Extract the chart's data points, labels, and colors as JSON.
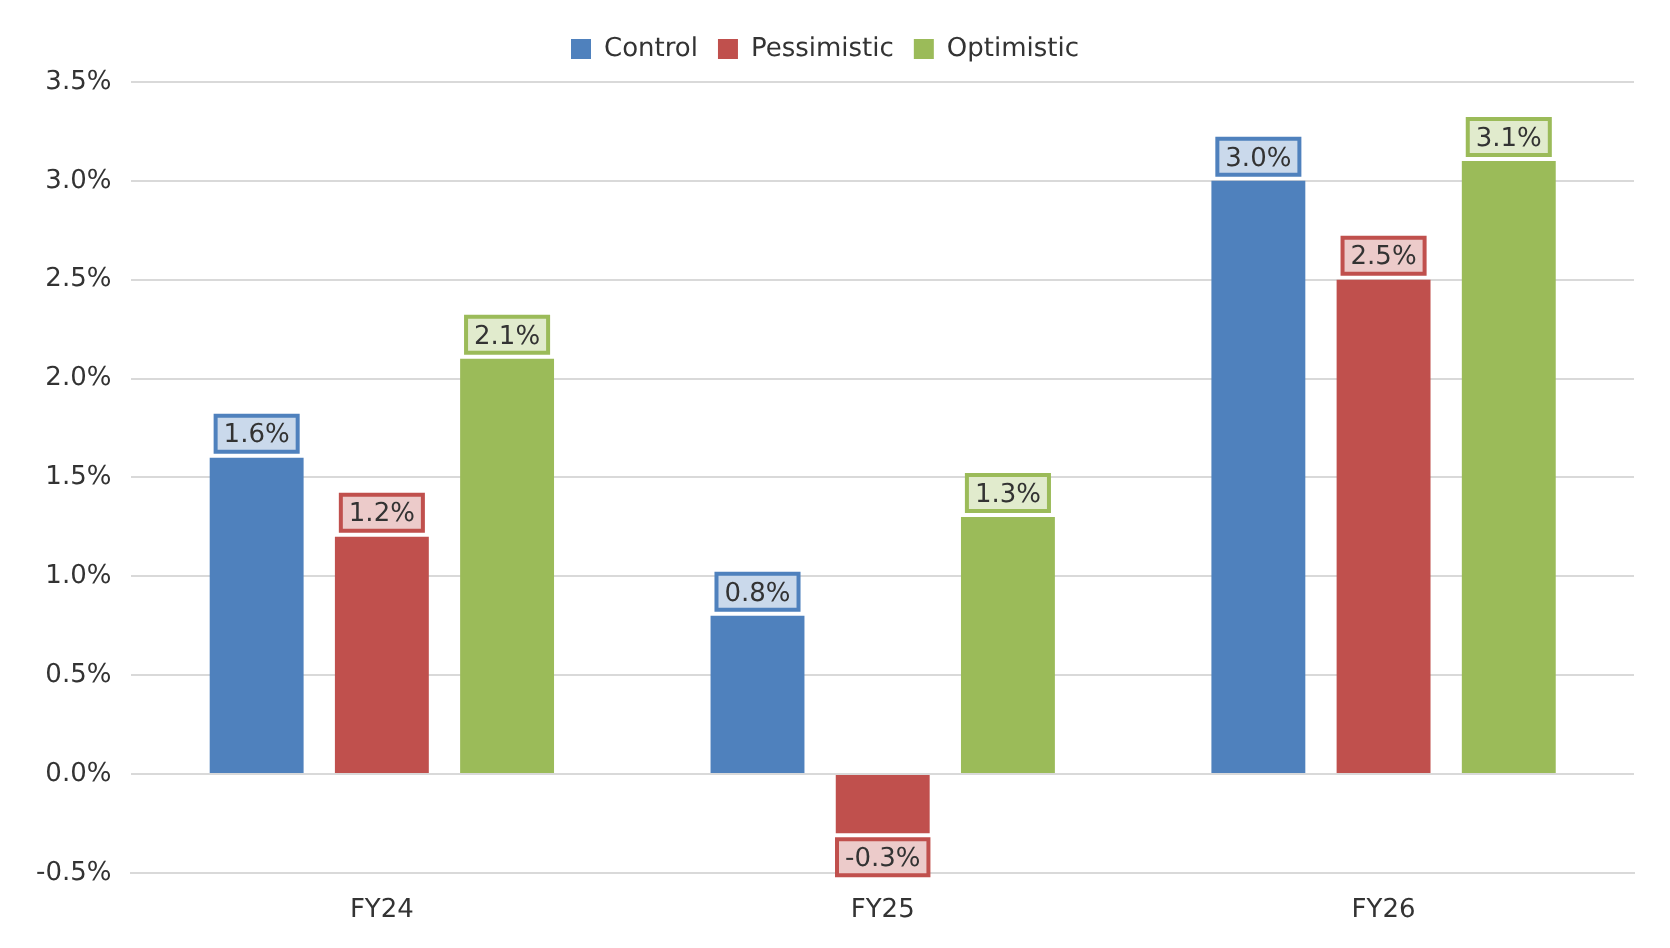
{
  "chart_data": {
    "type": "bar",
    "categories": [
      "FY24",
      "FY25",
      "FY26"
    ],
    "series": [
      {
        "name": "Control",
        "color": "#4f81bd",
        "values": [
          1.6,
          0.8,
          3.0
        ],
        "value_labels": [
          "1.6%",
          "0.8%",
          "3.0%"
        ]
      },
      {
        "name": "Pessimistic",
        "color": "#c0504d",
        "values": [
          1.2,
          -0.3,
          2.5
        ],
        "value_labels": [
          "1.2%",
          "-0.3%",
          "2.5%"
        ]
      },
      {
        "name": "Optimistic",
        "color": "#9bbb59",
        "values": [
          2.1,
          1.3,
          3.1
        ],
        "value_labels": [
          "2.1%",
          "1.3%",
          "3.1%"
        ]
      }
    ],
    "ylim": [
      -0.5,
      3.5
    ],
    "yticks": [
      {
        "value": -0.5,
        "label": "-0.5%"
      },
      {
        "value": 0,
        "label": "0.0%"
      },
      {
        "value": 0.5,
        "label": "0.5%"
      },
      {
        "value": 1,
        "label": "1.0%"
      },
      {
        "value": 1.5,
        "label": "1.5%"
      },
      {
        "value": 2,
        "label": "2.0%"
      },
      {
        "value": 2.5,
        "label": "2.5%"
      },
      {
        "value": 3,
        "label": "3.0%"
      },
      {
        "value": 3.5,
        "label": "3.5%"
      }
    ],
    "grid": "y",
    "legend": "top"
  }
}
